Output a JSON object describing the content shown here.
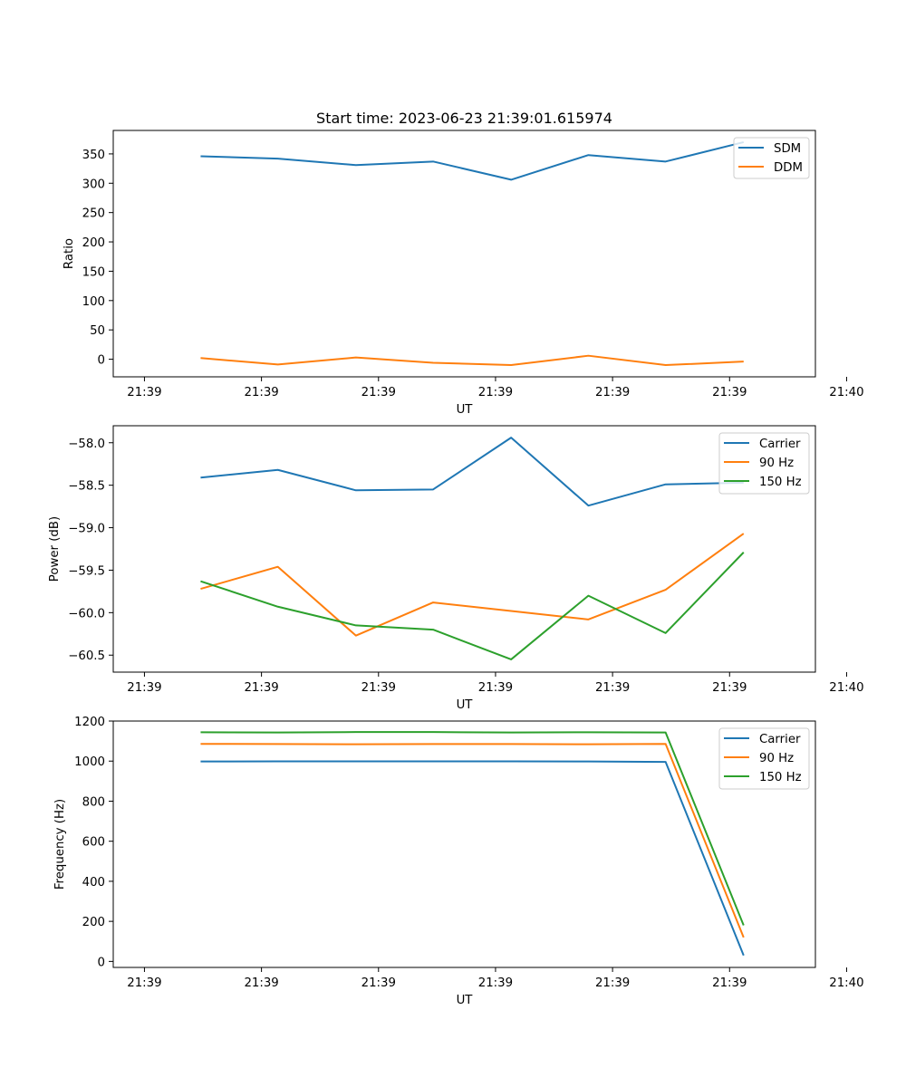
{
  "title": "Start time: 2023-06-23 21:39:01.615974",
  "colors": {
    "blue": "#1f77b4",
    "orange": "#ff7f0e",
    "green": "#2ca02c"
  },
  "chart_data": [
    {
      "type": "line",
      "title": "Start time: 2023-06-23 21:39:01.615974",
      "xlabel": "UT",
      "ylabel": "Ratio",
      "xlim": [
        -0.4,
        8.6
      ],
      "ylim": [
        -30,
        390
      ],
      "x_ticks": [
        0,
        1.5,
        3,
        4.5,
        6,
        7.5,
        9
      ],
      "x_tick_labels": [
        "21:39",
        "21:39",
        "21:39",
        "21:39",
        "21:39",
        "21:39",
        "21:40"
      ],
      "y_ticks": [
        0,
        50,
        100,
        150,
        200,
        250,
        300,
        350
      ],
      "y_tick_labels": [
        "0",
        "50",
        "100",
        "150",
        "200",
        "250",
        "300",
        "350"
      ],
      "x": [
        0.72,
        1.71,
        2.71,
        3.7,
        4.7,
        5.69,
        6.68,
        7.68
      ],
      "series": [
        {
          "name": "SDM",
          "color": "#1f77b4",
          "values": [
            346,
            342,
            331,
            337,
            306,
            348,
            337,
            370
          ]
        },
        {
          "name": "DDM",
          "color": "#ff7f0e",
          "values": [
            2,
            -9,
            3,
            -6,
            -10,
            6,
            -10,
            -4
          ]
        }
      ],
      "legend": "upper right",
      "grid": false
    },
    {
      "type": "line",
      "xlabel": "UT",
      "ylabel": "Power (dB)",
      "xlim": [
        -0.4,
        8.6
      ],
      "ylim": [
        -60.7,
        -57.8
      ],
      "x_ticks": [
        0,
        1.5,
        3,
        4.5,
        6,
        7.5,
        9
      ],
      "x_tick_labels": [
        "21:39",
        "21:39",
        "21:39",
        "21:39",
        "21:39",
        "21:39",
        "21:40"
      ],
      "y_ticks": [
        -60.5,
        -60.0,
        -59.5,
        -59.0,
        -58.5,
        -58.0
      ],
      "y_tick_labels": [
        "−60.5",
        "−60.0",
        "−59.5",
        "−59.0",
        "−58.5",
        "−58.0"
      ],
      "x": [
        0.72,
        1.71,
        2.71,
        3.7,
        4.7,
        5.69,
        6.68,
        7.68
      ],
      "series": [
        {
          "name": "Carrier",
          "color": "#1f77b4",
          "values": [
            -58.41,
            -58.32,
            -58.56,
            -58.55,
            -57.94,
            -58.74,
            -58.49,
            -58.47
          ]
        },
        {
          "name": "90 Hz",
          "color": "#ff7f0e",
          "values": [
            -59.72,
            -59.46,
            -60.27,
            -59.88,
            -59.98,
            -60.08,
            -59.73,
            -59.07
          ]
        },
        {
          "name": "150 Hz",
          "color": "#2ca02c",
          "values": [
            -59.63,
            -59.93,
            -60.15,
            -60.2,
            -60.55,
            -59.8,
            -60.24,
            -59.29
          ]
        }
      ],
      "legend": "upper right",
      "grid": false
    },
    {
      "type": "line",
      "xlabel": "UT",
      "ylabel": "Frequency (Hz)",
      "xlim": [
        -0.4,
        8.6
      ],
      "ylim": [
        -30,
        1200
      ],
      "x_ticks": [
        0,
        1.5,
        3,
        4.5,
        6,
        7.5,
        9
      ],
      "x_tick_labels": [
        "21:39",
        "21:39",
        "21:39",
        "21:39",
        "21:39",
        "21:39",
        "21:40"
      ],
      "y_ticks": [
        0,
        200,
        400,
        600,
        800,
        1000,
        1200
      ],
      "y_tick_labels": [
        "0",
        "200",
        "400",
        "600",
        "800",
        "1000",
        "1200"
      ],
      "x": [
        0.72,
        1.71,
        2.71,
        3.7,
        4.7,
        5.69,
        6.68,
        7.68
      ],
      "series": [
        {
          "name": "Carrier",
          "color": "#1f77b4",
          "values": [
            998,
            999,
            999,
            999,
            999,
            998,
            996,
            30
          ]
        },
        {
          "name": "90 Hz",
          "color": "#ff7f0e",
          "values": [
            1086,
            1085,
            1084,
            1085,
            1085,
            1084,
            1086,
            120
          ]
        },
        {
          "name": "150 Hz",
          "color": "#2ca02c",
          "values": [
            1144,
            1143,
            1145,
            1145,
            1143,
            1144,
            1143,
            180
          ]
        }
      ],
      "legend": "upper right",
      "grid": false
    }
  ]
}
